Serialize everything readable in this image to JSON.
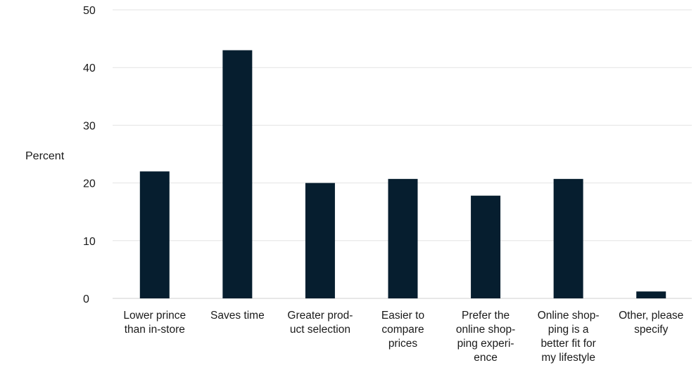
{
  "chart_data": {
    "type": "bar",
    "categories": [
      [
        "Lower prince",
        "than in-store"
      ],
      [
        "Saves time"
      ],
      [
        "Greater prod-",
        "uct selection"
      ],
      [
        "Easier to",
        "compare",
        "prices"
      ],
      [
        "Prefer the",
        "online shop-",
        "ping experi-",
        "ence"
      ],
      [
        "Online shop-",
        "ping is a",
        "better fit for",
        "my lifestyle"
      ],
      [
        "Other, please",
        "specify"
      ]
    ],
    "values": [
      22,
      43,
      20,
      20.7,
      17.8,
      20.7,
      1.2
    ],
    "title": "",
    "xlabel": "",
    "ylabel": "Percent",
    "ylim": [
      0,
      50
    ],
    "yticks": [
      0,
      10,
      20,
      30,
      40,
      50
    ],
    "grid": true,
    "bar_color": "#061e2f"
  }
}
